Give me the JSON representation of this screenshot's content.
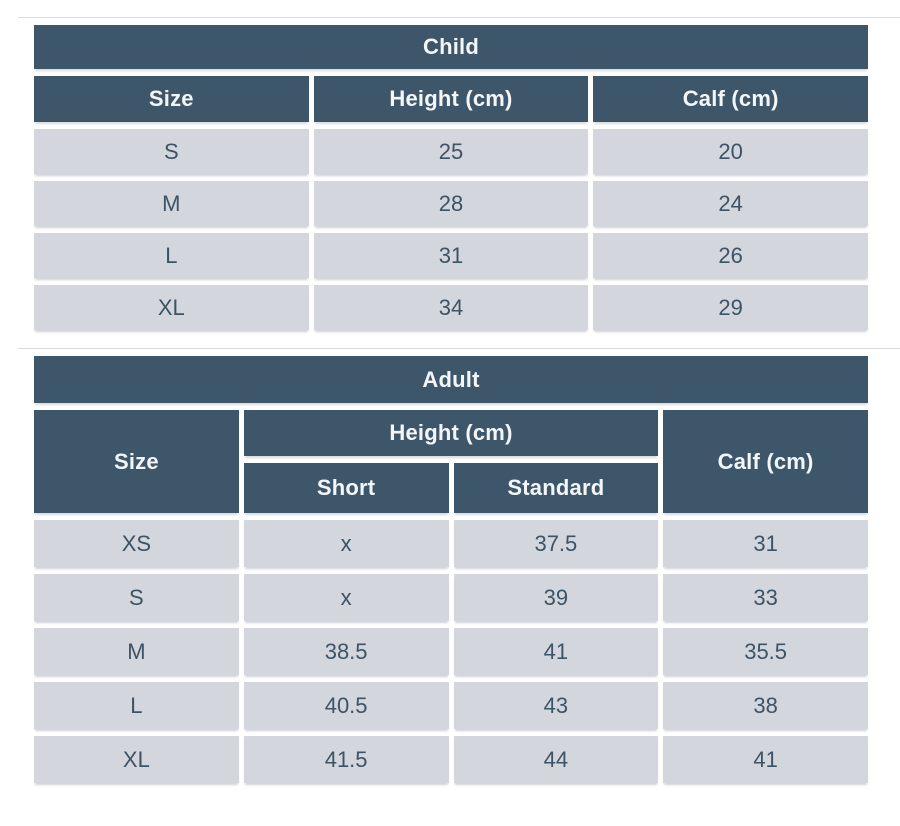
{
  "colors": {
    "header_bg": "#3E566A",
    "header_text": "#F2F6F8",
    "cell_bg": "#D3D6DC",
    "cell_text": "#3D5366",
    "divider": "#DBDBDB",
    "background": "#FFFFFF"
  },
  "child_table": {
    "title": "Child",
    "columns": [
      "Size",
      "Height (cm)",
      "Calf (cm)"
    ],
    "rows": [
      [
        "S",
        "25",
        "20"
      ],
      [
        "M",
        "28",
        "24"
      ],
      [
        "L",
        "31",
        "26"
      ],
      [
        "XL",
        "34",
        "29"
      ]
    ]
  },
  "adult_table": {
    "title": "Adult",
    "size_column": "Size",
    "height_group": "Height (cm)",
    "height_subcolumns": [
      "Short",
      "Standard"
    ],
    "calf_column": "Calf (cm)",
    "rows": [
      [
        "XS",
        "x",
        "37.5",
        "31"
      ],
      [
        "S",
        "x",
        "39",
        "33"
      ],
      [
        "M",
        "38.5",
        "41",
        "35.5"
      ],
      [
        "L",
        "40.5",
        "43",
        "38"
      ],
      [
        "XL",
        "41.5",
        "44",
        "41"
      ]
    ]
  },
  "chart_data": [
    {
      "type": "table",
      "title": "Child",
      "columns": [
        "Size",
        "Height (cm)",
        "Calf (cm)"
      ],
      "rows": [
        [
          "S",
          25,
          20
        ],
        [
          "M",
          28,
          24
        ],
        [
          "L",
          31,
          26
        ],
        [
          "XL",
          34,
          29
        ]
      ]
    },
    {
      "type": "table",
      "title": "Adult",
      "columns": [
        "Size",
        "Height (cm) Short",
        "Height (cm) Standard",
        "Calf (cm)"
      ],
      "rows": [
        [
          "XS",
          "x",
          37.5,
          31
        ],
        [
          "S",
          "x",
          39,
          33
        ],
        [
          "M",
          38.5,
          41,
          35.5
        ],
        [
          "L",
          40.5,
          43,
          38
        ],
        [
          "XL",
          41.5,
          44,
          41
        ]
      ]
    }
  ]
}
